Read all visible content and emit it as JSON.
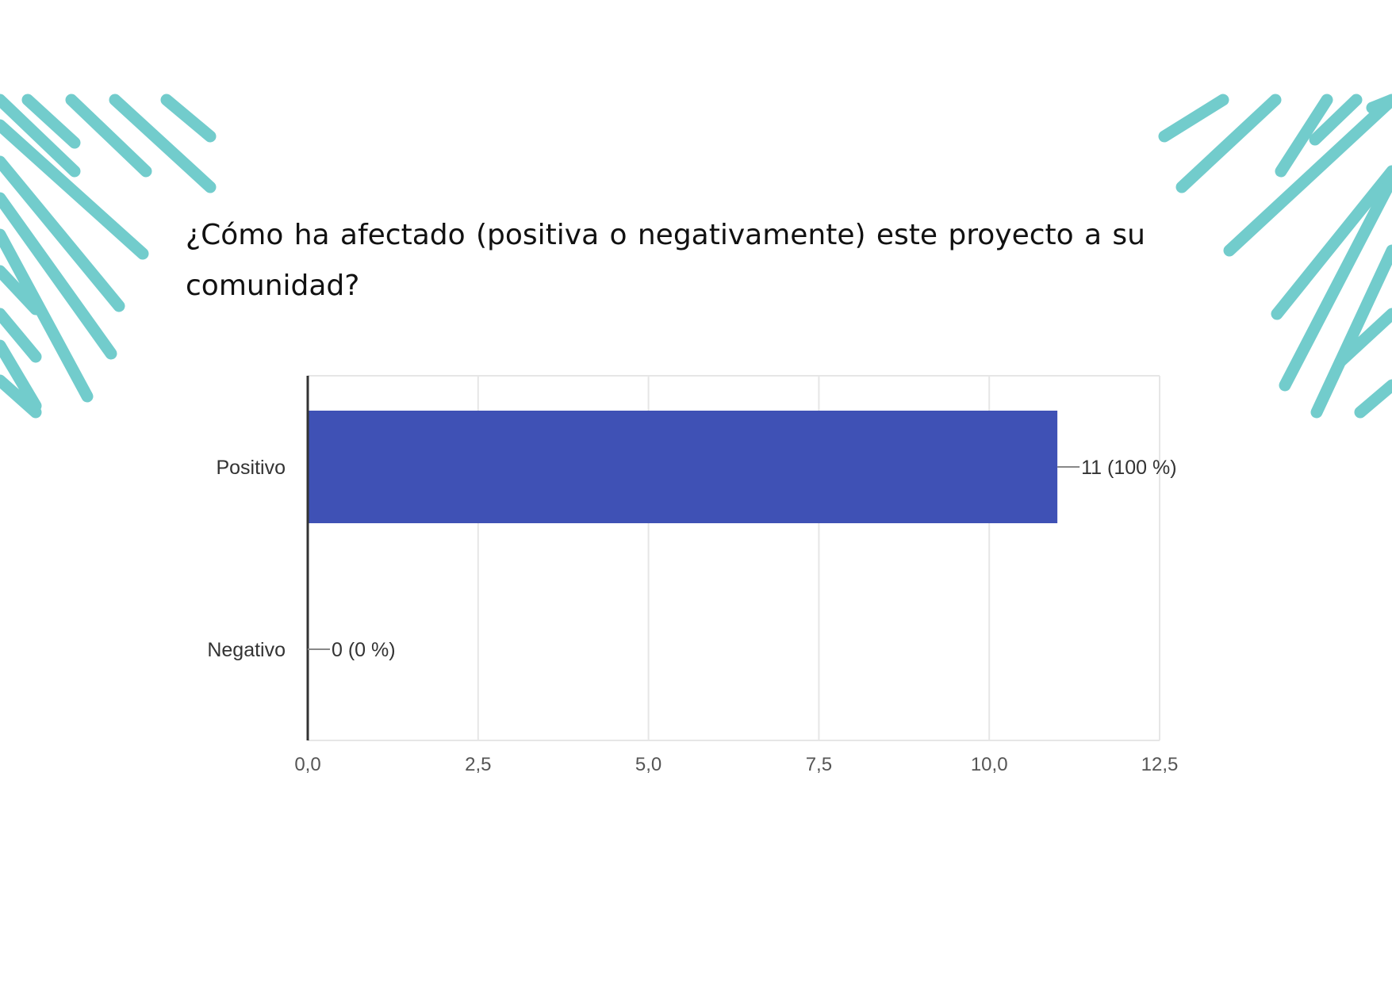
{
  "question": "¿Cómo ha afectado (positiva o negativamente) este proyecto a su comunidad?",
  "colors": {
    "bar": "#3f51b5",
    "decoration": "#72cccc",
    "grid": "#e6e6e6",
    "axis": "#333333"
  },
  "chart_data": {
    "type": "bar",
    "orientation": "horizontal",
    "categories": [
      "Positivo",
      "Negativo"
    ],
    "values": [
      11,
      0
    ],
    "data_labels": [
      "11 (100 %)",
      "0 (0 %)"
    ],
    "xlim": [
      0,
      12.5
    ],
    "x_ticks": [
      0,
      2.5,
      5,
      7.5,
      10,
      12.5
    ],
    "x_tick_labels": [
      "0,0",
      "2,5",
      "5,0",
      "7,5",
      "10,0",
      "12,5"
    ],
    "grid": true,
    "legend": "none"
  }
}
